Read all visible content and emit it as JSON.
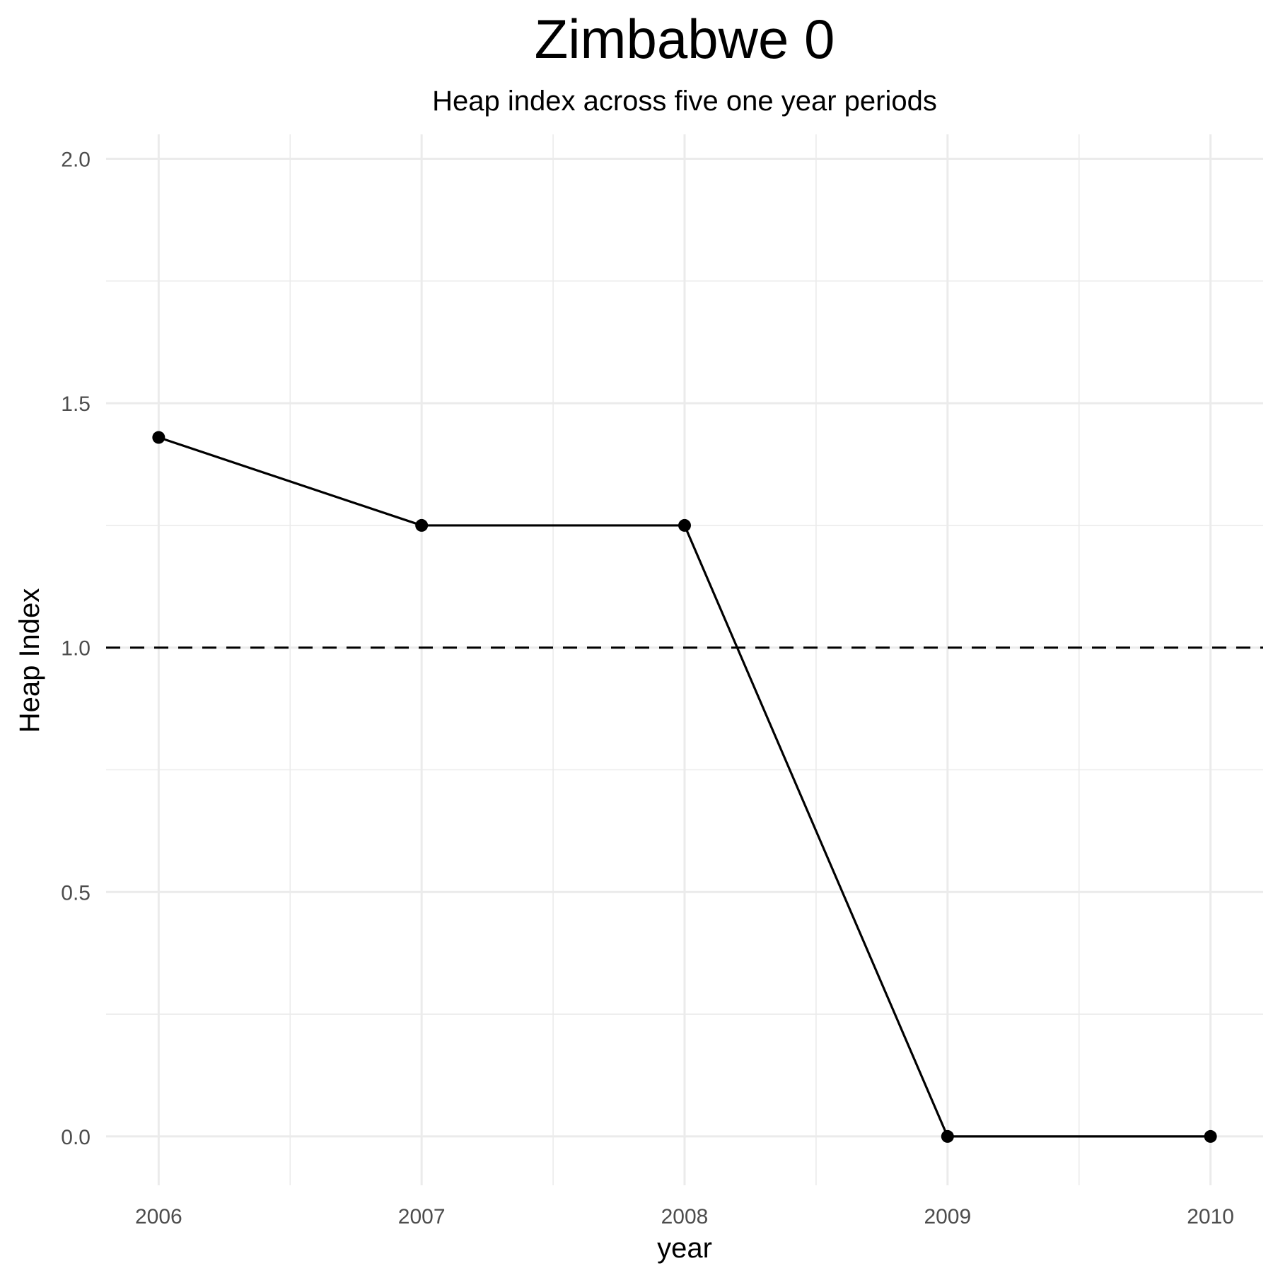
{
  "chart_data": {
    "type": "line",
    "title": "Zimbabwe 0",
    "subtitle": "Heap index across five one year periods",
    "xlabel": "year",
    "ylabel": "Heap Index",
    "x": [
      2006,
      2007,
      2008,
      2009,
      2010
    ],
    "xlim": [
      2005.8,
      2010.2
    ],
    "ylim": [
      -0.1,
      2.05
    ],
    "x_ticks": [
      "2006",
      "2007",
      "2008",
      "2009",
      "2010"
    ],
    "y_ticks": [
      "0.0",
      "0.5",
      "1.0",
      "1.5",
      "2.0"
    ],
    "series": [
      {
        "values": [
          1.43,
          1.25,
          1.25,
          0.0,
          0.0
        ],
        "color": "#000000",
        "markers": true
      }
    ],
    "reference_line": {
      "y": 1.0,
      "style": "dashed",
      "color": "#000000"
    },
    "grid": true,
    "legend": "none"
  }
}
